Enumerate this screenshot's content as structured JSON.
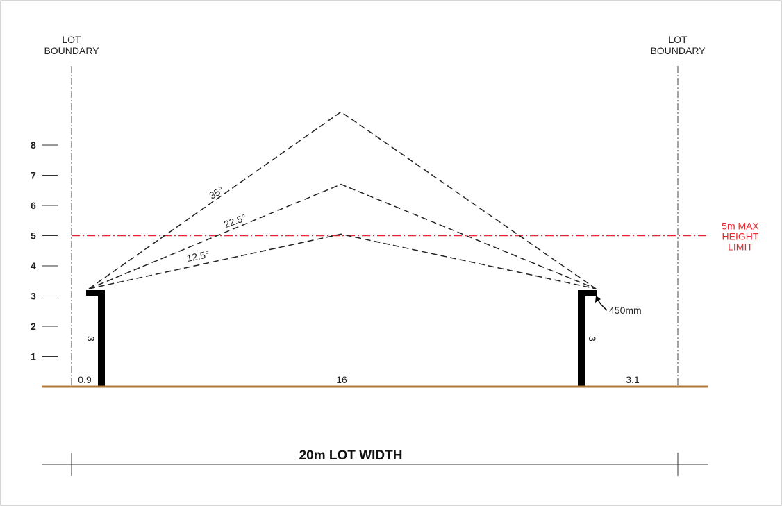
{
  "boundary_labels": {
    "left": [
      "LOT",
      "BOUNDARY"
    ],
    "right": [
      "LOT",
      "BOUNDARY"
    ]
  },
  "height_scale": [
    1,
    2,
    3,
    4,
    5,
    6,
    7,
    8
  ],
  "max_height": {
    "value": 5,
    "label": [
      "5m MAX",
      "HEIGHT",
      "LIMIT"
    ],
    "color": "#e8282e"
  },
  "roof_pitches": [
    {
      "angle_label": "12.5°",
      "ridge_height": 5.05
    },
    {
      "angle_label": "22.5°",
      "ridge_height": 6.7
    },
    {
      "angle_label": "35°",
      "ridge_height": 9.1
    }
  ],
  "wall_height_labels": {
    "left": "3",
    "right": "3"
  },
  "eave_label": "450mm",
  "setbacks": {
    "left": "0.9",
    "building": "16",
    "right": "3.1"
  },
  "lot_width_label": "20m LOT WIDTH",
  "ground_color": "#b07a3a"
}
